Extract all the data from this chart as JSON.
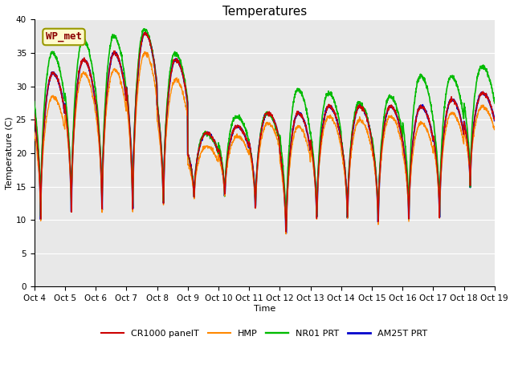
{
  "title": "Temperatures",
  "xlabel": "Time",
  "ylabel": "Temperature (C)",
  "ylim": [
    0,
    40
  ],
  "yticks": [
    0,
    5,
    10,
    15,
    20,
    25,
    30,
    35,
    40
  ],
  "background_color": "#e8e8e8",
  "fig_background": "#ffffff",
  "legend_label": "WP_met",
  "series_labels": [
    "CR1000 panelT",
    "HMP",
    "NR01 PRT",
    "AM25T PRT"
  ],
  "series_colors": [
    "#cc0000",
    "#ff8800",
    "#00bb00",
    "#0000cc"
  ],
  "series_linewidths": [
    1.0,
    1.0,
    1.2,
    1.5
  ],
  "x_tick_labels": [
    "Oct 4",
    "Oct 5",
    "Oct 6",
    "Oct 7",
    "Oct 8",
    "Oct 9",
    "Oct 10",
    "Oct 11",
    "Oct 12",
    "Oct 13",
    "Oct 14",
    "Oct 15",
    "Oct 16",
    "Oct 17",
    "Oct 18",
    "Oct 19"
  ],
  "title_fontsize": 11,
  "axis_label_fontsize": 8,
  "tick_fontsize": 7.5,
  "legend_fontsize": 8,
  "daily_max_base": [
    32,
    34,
    35,
    38,
    34,
    23,
    24,
    26,
    26,
    27,
    27,
    27,
    27,
    28,
    29
  ],
  "daily_min_base": [
    9.8,
    10.0,
    10.0,
    9.5,
    10.5,
    12.5,
    12.5,
    10.5,
    6.2,
    9.0,
    9.0,
    8.5,
    9.0,
    9.5,
    14.5
  ],
  "nr01_extra_peak": [
    3.0,
    3.0,
    2.5,
    0.5,
    1.0,
    0.0,
    1.5,
    0.0,
    3.5,
    2.0,
    0.5,
    1.5,
    4.5,
    3.5,
    4.0
  ],
  "hmp_peak_reduction": [
    3.5,
    2.0,
    2.5,
    3.0,
    3.0,
    2.0,
    1.5,
    1.5,
    2.0,
    1.5,
    2.0,
    1.5,
    2.5,
    2.0,
    2.0
  ],
  "pts_per_day": 144,
  "n_days": 15
}
